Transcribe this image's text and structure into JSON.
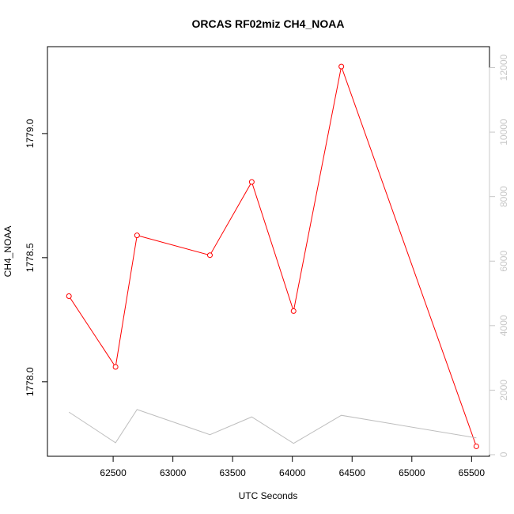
{
  "chart_data": {
    "type": "line",
    "title": "ORCAS RF02miz CH4_NOAA",
    "xlabel": "UTC Seconds",
    "ylabel": "CH4_NOAA",
    "xlim": [
      61950,
      65650
    ],
    "ylim": [
      1777.7,
      1779.35
    ],
    "y2lim": [
      -50,
      12650
    ],
    "x_ticks": [
      62500,
      63000,
      63500,
      64000,
      64500,
      65000,
      65500
    ],
    "y_ticks": [
      1778.0,
      1778.5,
      1779.0
    ],
    "y_tick_labels": [
      "1778.0",
      "1778.5",
      "1779.0"
    ],
    "y2_ticks": [
      0,
      2000,
      4000,
      6000,
      8000,
      10000,
      12000
    ],
    "grid": false,
    "series": [
      {
        "axis": "left",
        "color": "#ff0000",
        "markers": "open-circle",
        "x": [
          62130,
          62520,
          62700,
          63310,
          63660,
          64010,
          64410,
          65540
        ],
        "y": [
          1778.345,
          1778.06,
          1778.59,
          1778.51,
          1778.805,
          1778.285,
          1779.27,
          1777.74
        ]
      },
      {
        "axis": "right",
        "color": "#bebebe",
        "markers": "none",
        "x": [
          62130,
          62520,
          62700,
          63310,
          63660,
          64010,
          64410,
          65540
        ],
        "y": [
          1320,
          370,
          1400,
          620,
          1170,
          350,
          1220,
          520
        ]
      }
    ]
  }
}
